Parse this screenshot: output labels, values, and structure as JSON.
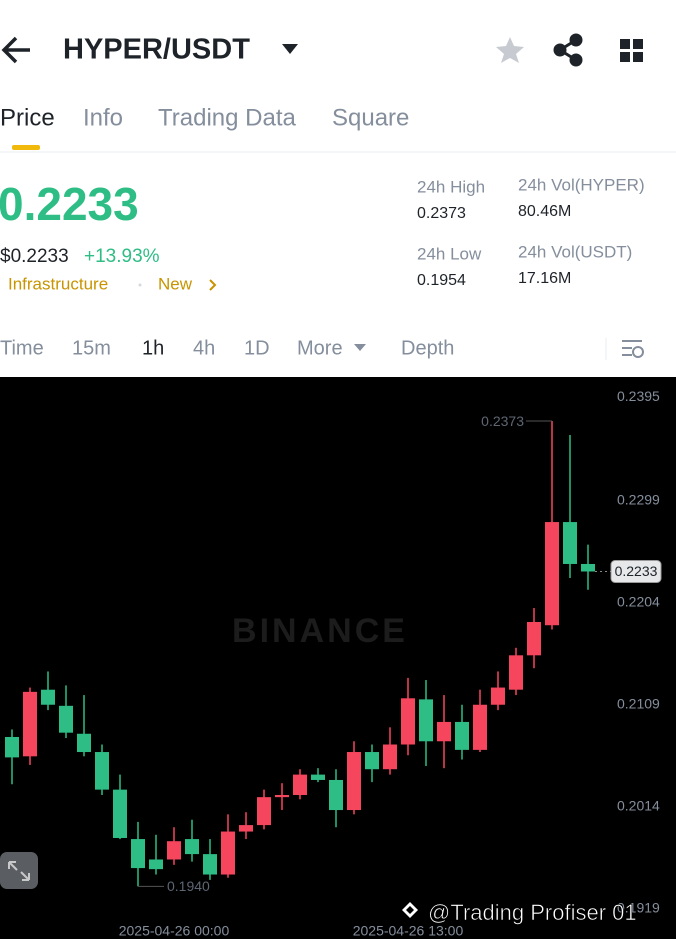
{
  "header": {
    "title": "HYPER/USDT"
  },
  "tabs": [
    "Price",
    "Info",
    "Trading Data",
    "Square"
  ],
  "ticker": {
    "price": "0.2233",
    "fiat_price": "$0.2233",
    "change": "+13.93%",
    "tags": [
      "Infrastructure",
      "New"
    ]
  },
  "stats": [
    {
      "label": "24h High",
      "value": "0.2373"
    },
    {
      "label": "24h Vol(HYPER)",
      "value": "80.46M"
    },
    {
      "label": "24h Low",
      "value": "0.1954"
    },
    {
      "label": "24h Vol(USDT)",
      "value": "17.16M"
    }
  ],
  "intervals": [
    "Time",
    "15m",
    "1h",
    "4h",
    "1D",
    "More",
    "Depth"
  ],
  "watermark": "BINANCE",
  "credit": "@Trading Profiser 01",
  "chart_data": {
    "type": "candlestick",
    "categories": [
      null,
      null,
      null,
      null,
      null,
      null,
      null,
      null,
      null,
      "2025-04-26 00:00",
      null,
      null,
      null,
      null,
      null,
      null,
      null,
      null,
      null,
      null,
      null,
      null,
      "2025-04-26 13:00",
      null,
      null,
      null,
      null,
      null,
      null,
      null,
      null,
      null,
      null
    ],
    "open": [
      0.2079,
      0.2061,
      0.2123,
      0.2108,
      0.2082,
      0.2065,
      0.203,
      0.1984,
      0.1965,
      0.1965,
      0.1984,
      0.197,
      0.1951,
      0.1991,
      0.1997,
      0.2023,
      0.2025,
      0.2044,
      0.2039,
      0.2011,
      0.2065,
      0.2049,
      0.2072,
      0.2114,
      0.2075,
      0.2093,
      0.2067,
      0.2109,
      0.2123,
      0.2155,
      0.2183,
      0.2279,
      0.224
    ],
    "high": [
      0.2086,
      0.2125,
      0.214,
      0.2127,
      0.2118,
      0.2072,
      0.2044,
      0.2,
      0.1988,
      0.1995,
      0.2002,
      0.1984,
      0.2007,
      0.2009,
      0.203,
      0.2036,
      0.2049,
      0.205,
      0.2049,
      0.2075,
      0.2072,
      0.2088,
      0.2134,
      0.2132,
      0.2118,
      0.2109,
      0.2123,
      0.214,
      0.2162,
      0.2199,
      0.2373,
      0.236,
      0.2258
    ],
    "low": [
      0.2035,
      0.2053,
      0.2104,
      0.2078,
      0.2061,
      0.2025,
      0.1984,
      0.194,
      0.1951,
      0.196,
      0.1963,
      0.1946,
      0.1948,
      0.1984,
      0.1993,
      0.2011,
      0.2021,
      0.2037,
      0.1995,
      0.2007,
      0.2037,
      0.2044,
      0.2062,
      0.2052,
      0.205,
      0.2058,
      0.2065,
      0.2104,
      0.2118,
      0.2143,
      0.2179,
      0.2227,
      0.2216
    ],
    "close": [
      0.206,
      0.2121,
      0.2109,
      0.2083,
      0.2065,
      0.203,
      0.1985,
      0.1957,
      0.1956,
      0.1982,
      0.197,
      0.1951,
      0.1991,
      0.1997,
      0.2023,
      0.2025,
      0.2044,
      0.2039,
      0.2011,
      0.2065,
      0.2049,
      0.2072,
      0.2115,
      0.2075,
      0.2093,
      0.2067,
      0.2109,
      0.2125,
      0.2155,
      0.2186,
      0.2279,
      0.224,
      0.2233
    ],
    "up_color": "#f6465d",
    "down_color": "#2ebd85",
    "ylim": [
      0.1891,
      0.2414
    ],
    "yticks": [
      0.2395,
      0.2299,
      0.2204,
      0.2109,
      0.2014,
      0.1919
    ],
    "grid": false,
    "value_labels": {
      "high": "0.2373",
      "low": "0.1940",
      "last": "0.2233"
    }
  }
}
